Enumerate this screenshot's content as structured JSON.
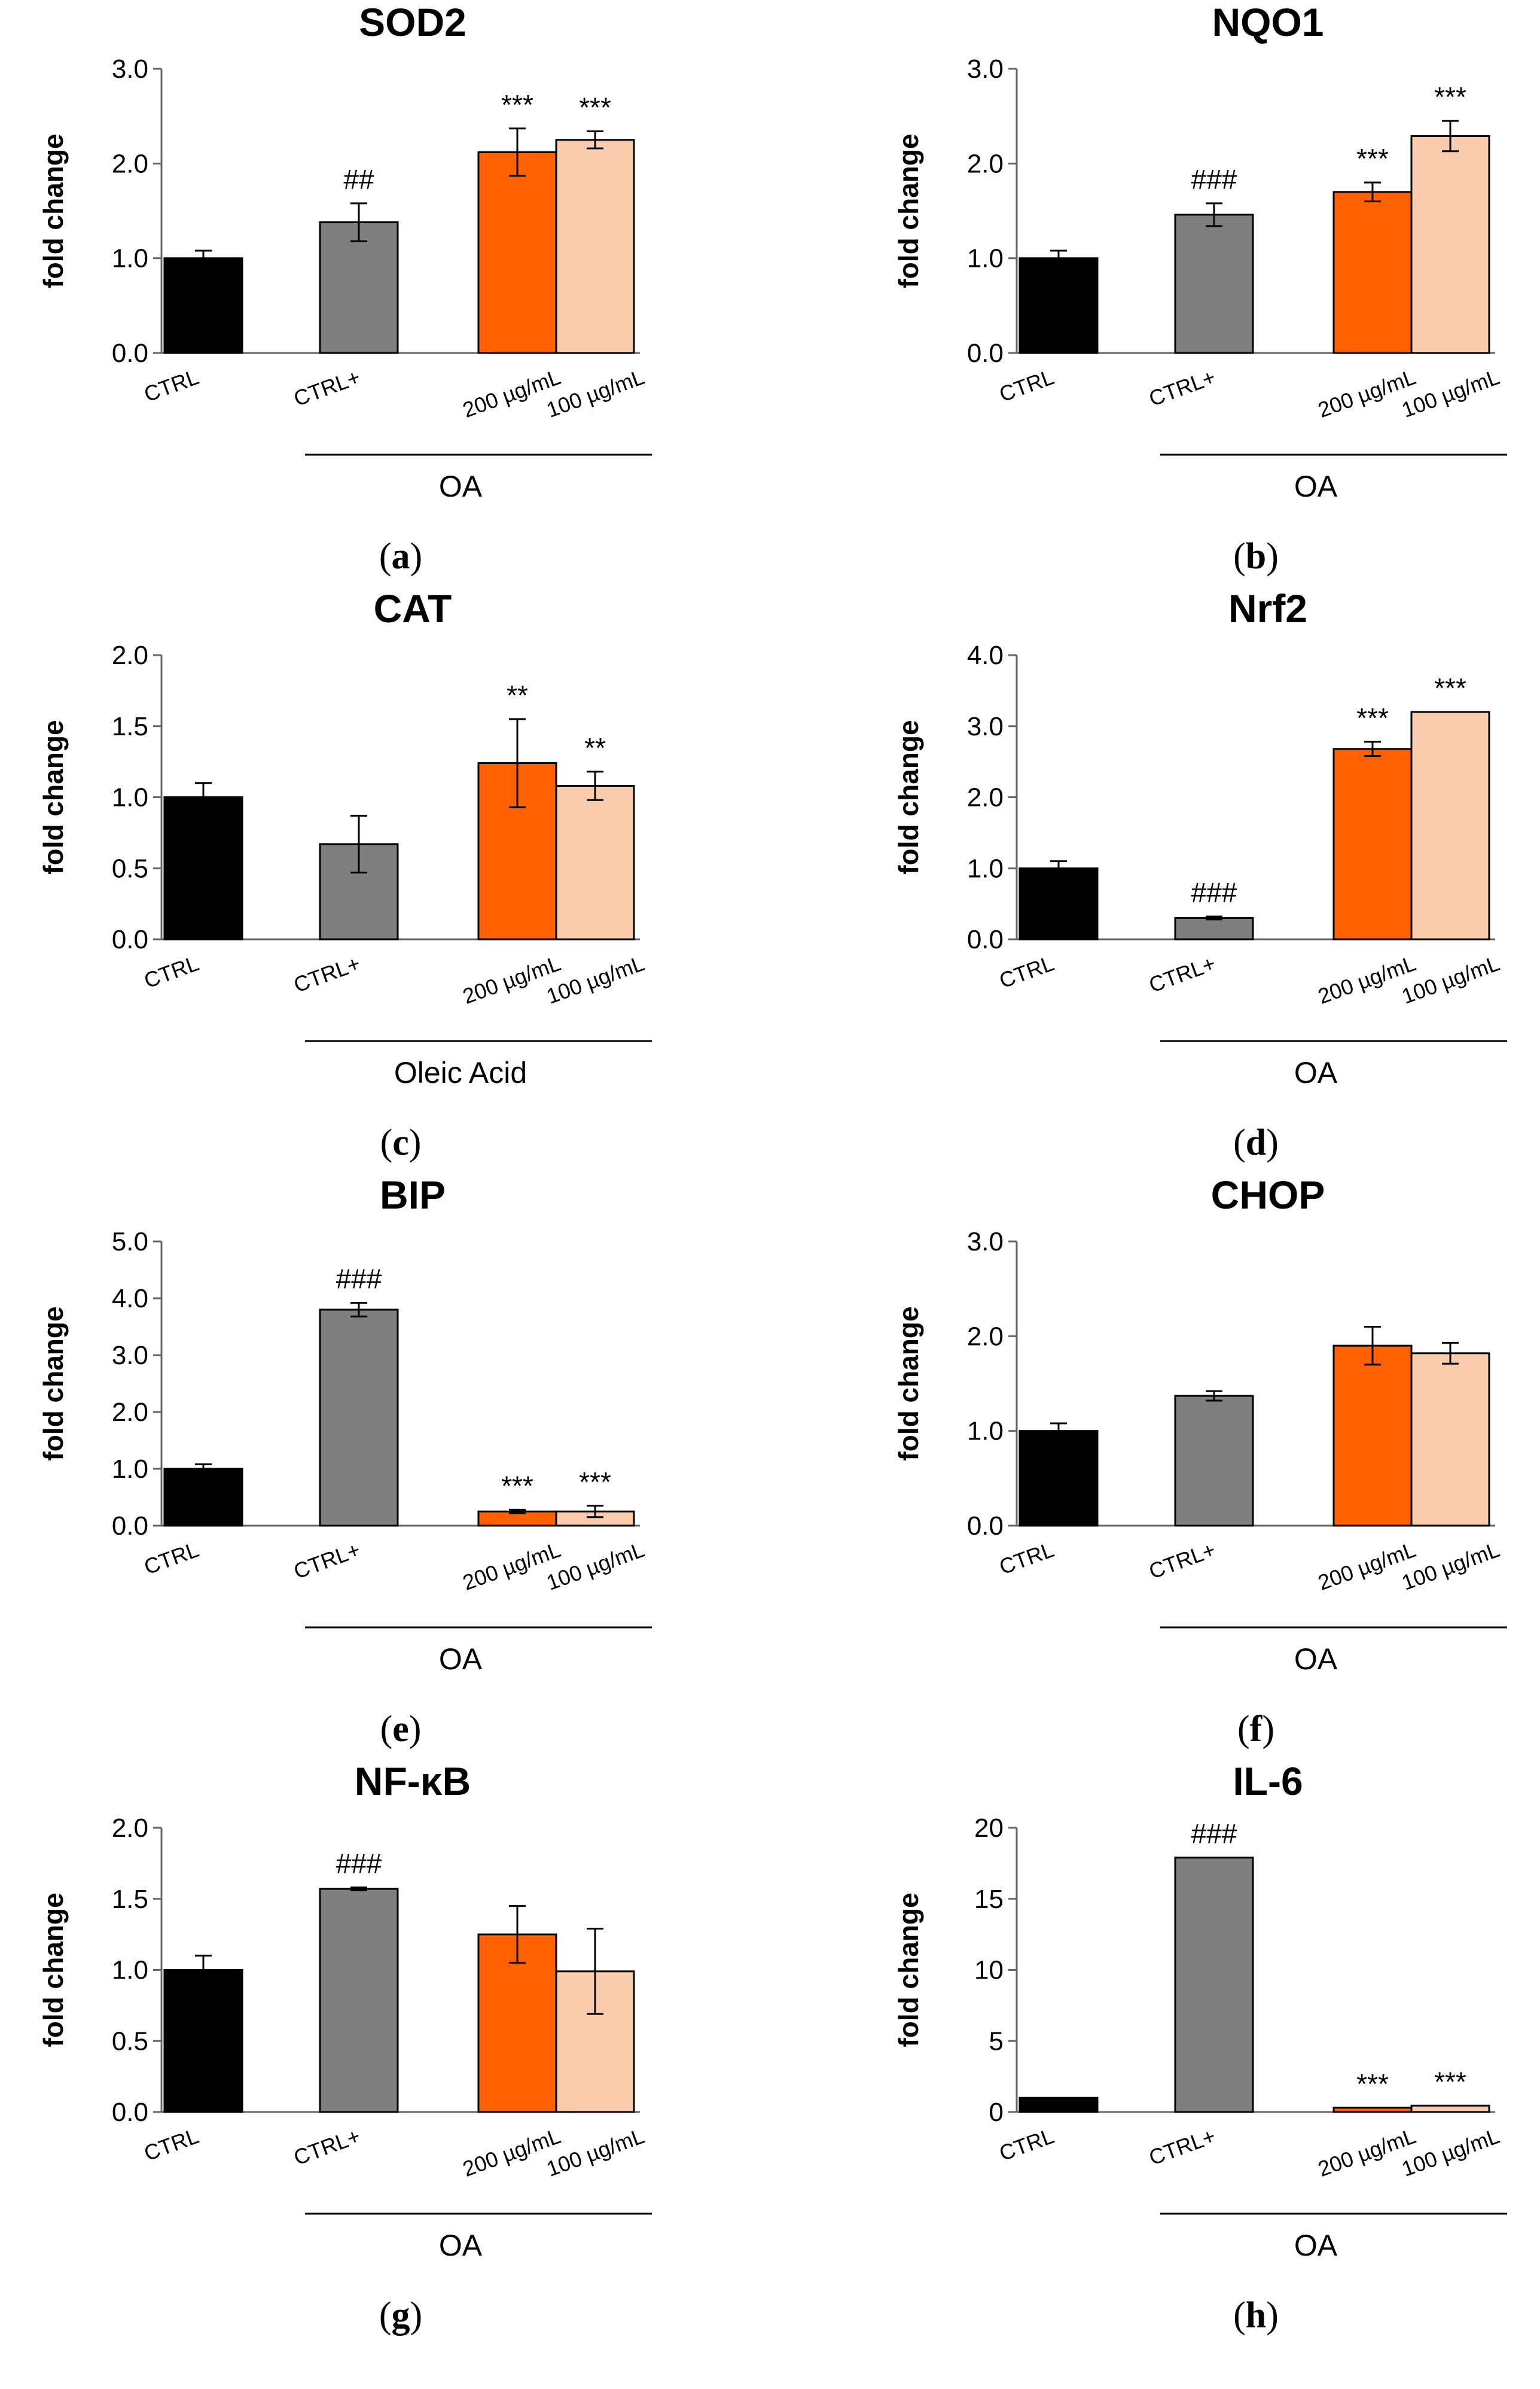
{
  "colors": {
    "CTRL": "#000000",
    "CTRL+": "#7f7f7f",
    "200": "#ff6000",
    "100": "#f8ccad"
  },
  "categories": [
    "CTRL",
    "CTRL+",
    "200 µg/mL",
    "100 µg/mL"
  ],
  "chart_data": [
    {
      "type": "bar",
      "letter": "a",
      "title": "SOD2",
      "ylabel": "fold change",
      "group_label": "OA",
      "ylim": [
        0,
        3
      ],
      "yticks": [
        "0.0",
        "1.0",
        "2.0",
        "3.0"
      ],
      "tick_values": [
        0,
        1,
        2,
        3
      ],
      "categories": [
        "CTRL",
        "CTRL+",
        "200 µg/mL",
        "100 µg/mL"
      ],
      "values": [
        1.0,
        1.38,
        2.12,
        2.25
      ],
      "errors": [
        0.08,
        0.2,
        0.25,
        0.09
      ],
      "annotations": [
        "",
        "##",
        "***",
        "***"
      ]
    },
    {
      "type": "bar",
      "letter": "b",
      "title": "NQO1",
      "ylabel": "fold change",
      "group_label": "OA",
      "ylim": [
        0,
        3
      ],
      "yticks": [
        "0.0",
        "1.0",
        "2.0",
        "3.0"
      ],
      "tick_values": [
        0,
        1,
        2,
        3
      ],
      "categories": [
        "CTRL",
        "CTRL+",
        "200 µg/mL",
        "100 µg/mL"
      ],
      "values": [
        1.0,
        1.46,
        1.7,
        2.29
      ],
      "errors": [
        0.08,
        0.12,
        0.1,
        0.16
      ],
      "annotations": [
        "",
        "###",
        "***",
        "***"
      ]
    },
    {
      "type": "bar",
      "letter": "c",
      "title": "CAT",
      "ylabel": "fold change",
      "group_label": "Oleic Acid",
      "ylim": [
        0,
        2
      ],
      "yticks": [
        "0.0",
        "0.5",
        "1.0",
        "1.5",
        "2.0"
      ],
      "tick_values": [
        0,
        0.5,
        1,
        1.5,
        2
      ],
      "categories": [
        "CTRL",
        "CTRL+",
        "200 µg/mL",
        "100 µg/mL"
      ],
      "values": [
        1.0,
        0.67,
        1.24,
        1.08
      ],
      "errors": [
        0.1,
        0.2,
        0.31,
        0.1
      ],
      "annotations": [
        "",
        "",
        "**",
        "**"
      ]
    },
    {
      "type": "bar",
      "letter": "d",
      "title": "Nrf2",
      "ylabel": "fold change",
      "group_label": "OA",
      "ylim": [
        0,
        4
      ],
      "yticks": [
        "0.0",
        "1.0",
        "2.0",
        "3.0",
        "4.0"
      ],
      "tick_values": [
        0,
        1,
        2,
        3,
        4
      ],
      "categories": [
        "CTRL",
        "CTRL+",
        "200 µg/mL",
        "100 µg/mL"
      ],
      "values": [
        1.0,
        0.3,
        2.68,
        3.2
      ],
      "errors": [
        0.1,
        0.02,
        0.1,
        0
      ],
      "annotations": [
        "",
        "###",
        "***",
        "***"
      ]
    },
    {
      "type": "bar",
      "letter": "e",
      "title": "BIP",
      "ylabel": "fold change",
      "group_label": "OA",
      "ylim": [
        0,
        5
      ],
      "yticks": [
        "0.0",
        "1.0",
        "2.0",
        "3.0",
        "4.0",
        "5.0"
      ],
      "tick_values": [
        0,
        1,
        2,
        3,
        4,
        5
      ],
      "categories": [
        "CTRL",
        "CTRL+",
        "200 µg/mL",
        "100 µg/mL"
      ],
      "values": [
        1.0,
        3.8,
        0.25,
        0.25
      ],
      "errors": [
        0.08,
        0.12,
        0.03,
        0.1
      ],
      "annotations": [
        "",
        "###",
        "***",
        "***"
      ]
    },
    {
      "type": "bar",
      "letter": "f",
      "title": "CHOP",
      "ylabel": "fold change",
      "group_label": "OA",
      "ylim": [
        0,
        3
      ],
      "yticks": [
        "0.0",
        "1.0",
        "2.0",
        "3.0"
      ],
      "tick_values": [
        0,
        1,
        2,
        3
      ],
      "categories": [
        "CTRL",
        "CTRL+",
        "200 µg/mL",
        "100 µg/mL"
      ],
      "values": [
        1.0,
        1.37,
        1.9,
        1.82
      ],
      "errors": [
        0.08,
        0.05,
        0.2,
        0.11
      ],
      "annotations": [
        "",
        "",
        "",
        ""
      ]
    },
    {
      "type": "bar",
      "letter": "g",
      "title": "NF-κB",
      "ylabel": "fold change",
      "group_label": "OA",
      "ylim": [
        0,
        2
      ],
      "yticks": [
        "0.0",
        "0.5",
        "1.0",
        "1.5",
        "2.0"
      ],
      "tick_values": [
        0,
        0.5,
        1,
        1.5,
        2
      ],
      "categories": [
        "CTRL",
        "CTRL+",
        "200 µg/mL",
        "100 µg/mL"
      ],
      "values": [
        1.0,
        1.57,
        1.25,
        0.99
      ],
      "errors": [
        0.1,
        0.01,
        0.2,
        0.3
      ],
      "annotations": [
        "",
        "###",
        "",
        ""
      ]
    },
    {
      "type": "bar",
      "letter": "h",
      "title": "IL-6",
      "ylabel": "fold change",
      "group_label": "OA",
      "ylim": [
        0,
        20
      ],
      "yticks": [
        "0",
        "5",
        "10",
        "15",
        "20"
      ],
      "tick_values": [
        0,
        5,
        10,
        15,
        20
      ],
      "categories": [
        "CTRL",
        "CTRL+",
        "200 µg/mL",
        "100 µg/mL"
      ],
      "values": [
        1.0,
        17.9,
        0.3,
        0.45
      ],
      "errors": [
        0,
        0,
        0,
        0
      ],
      "annotations": [
        "",
        "###",
        "***",
        "***"
      ]
    }
  ]
}
